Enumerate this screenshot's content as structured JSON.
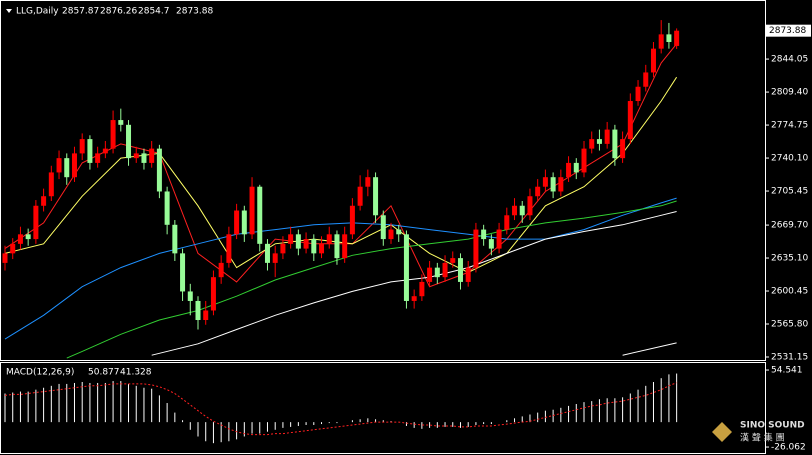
{
  "chart_data": [
    {
      "type": "candlestick",
      "title": "LLG,Daily",
      "up_color": "#ff0000",
      "down_color": "#98fb98",
      "open": [
        2630,
        2640,
        2650,
        2660,
        2655,
        2690,
        2700,
        2725,
        2740,
        2720,
        2745,
        2760,
        2735,
        2745,
        2750,
        2780,
        2775,
        2740,
        2745,
        2735,
        2750,
        2705,
        2670,
        2640,
        2600,
        2590,
        2570,
        2580,
        2615,
        2630,
        2660,
        2685,
        2660,
        2710,
        2650,
        2630,
        2640,
        2650,
        2660,
        2645,
        2655,
        2640,
        2650,
        2660,
        2635,
        2660,
        2690,
        2710,
        2720,
        2680,
        2655,
        2665,
        2660,
        2590,
        2595,
        2610,
        2625,
        2615,
        2630,
        2635,
        2610,
        2625,
        2665,
        2655,
        2645,
        2665,
        2680,
        2690,
        2680,
        2700,
        2710,
        2720,
        2705,
        2720,
        2735,
        2725,
        2750,
        2760,
        2755,
        2770,
        2740,
        2760,
        2800,
        2815,
        2830,
        2855,
        2870,
        2857.87
      ],
      "high": [
        2648,
        2656,
        2668,
        2666,
        2696,
        2708,
        2732,
        2748,
        2745,
        2752,
        2766,
        2764,
        2752,
        2758,
        2790,
        2792,
        2780,
        2752,
        2750,
        2758,
        2754,
        2710,
        2675,
        2645,
        2608,
        2595,
        2590,
        2622,
        2638,
        2668,
        2692,
        2690,
        2720,
        2712,
        2655,
        2648,
        2658,
        2668,
        2665,
        2662,
        2660,
        2658,
        2668,
        2664,
        2668,
        2698,
        2722,
        2728,
        2725,
        2685,
        2672,
        2670,
        2664,
        2602,
        2618,
        2632,
        2630,
        2638,
        2642,
        2640,
        2632,
        2672,
        2670,
        2660,
        2672,
        2688,
        2698,
        2695,
        2708,
        2718,
        2728,
        2725,
        2728,
        2742,
        2740,
        2758,
        2768,
        2770,
        2778,
        2775,
        2768,
        2808,
        2822,
        2838,
        2862,
        2885,
        2882,
        2876.26
      ],
      "low": [
        2622,
        2634,
        2644,
        2648,
        2650,
        2684,
        2695,
        2718,
        2712,
        2715,
        2738,
        2728,
        2730,
        2740,
        2745,
        2768,
        2732,
        2735,
        2728,
        2730,
        2698,
        2660,
        2632,
        2590,
        2575,
        2560,
        2565,
        2575,
        2608,
        2625,
        2655,
        2652,
        2655,
        2642,
        2622,
        2615,
        2634,
        2645,
        2638,
        2640,
        2632,
        2635,
        2645,
        2628,
        2630,
        2655,
        2685,
        2700,
        2672,
        2648,
        2650,
        2652,
        2582,
        2582,
        2590,
        2605,
        2608,
        2610,
        2625,
        2602,
        2605,
        2620,
        2648,
        2638,
        2640,
        2660,
        2675,
        2672,
        2675,
        2695,
        2705,
        2698,
        2700,
        2715,
        2718,
        2720,
        2745,
        2748,
        2750,
        2732,
        2735,
        2755,
        2795,
        2810,
        2825,
        2850,
        2855,
        2854.7
      ],
      "close": [
        2640,
        2650,
        2660,
        2655,
        2690,
        2700,
        2725,
        2740,
        2720,
        2745,
        2760,
        2735,
        2745,
        2750,
        2780,
        2775,
        2740,
        2745,
        2735,
        2750,
        2705,
        2670,
        2640,
        2600,
        2590,
        2570,
        2580,
        2615,
        2630,
        2660,
        2685,
        2660,
        2710,
        2650,
        2630,
        2640,
        2650,
        2660,
        2645,
        2655,
        2640,
        2650,
        2660,
        2635,
        2660,
        2690,
        2710,
        2720,
        2680,
        2655,
        2665,
        2660,
        2590,
        2595,
        2610,
        2625,
        2615,
        2630,
        2635,
        2610,
        2625,
        2665,
        2655,
        2645,
        2665,
        2680,
        2690,
        2680,
        2700,
        2710,
        2720,
        2705,
        2720,
        2735,
        2725,
        2750,
        2760,
        2755,
        2770,
        2740,
        2760,
        2800,
        2815,
        2830,
        2855,
        2870,
        2862,
        2873.88
      ],
      "series": [
        {
          "color": "#ff2020",
          "x": [
            0,
            5,
            10,
            15,
            20,
            25,
            30,
            35,
            40,
            45,
            50,
            55,
            60,
            65,
            70,
            75,
            80,
            85,
            87
          ],
          "values": [
            2645,
            2672,
            2735,
            2755,
            2745,
            2640,
            2610,
            2655,
            2650,
            2650,
            2690,
            2605,
            2620,
            2655,
            2705,
            2730,
            2755,
            2840,
            2860
          ]
        },
        {
          "color": "#ffff66",
          "x": [
            0,
            5,
            10,
            15,
            20,
            25,
            30,
            35,
            40,
            45,
            50,
            55,
            60,
            65,
            70,
            75,
            80,
            85,
            87
          ],
          "values": [
            2640,
            2650,
            2700,
            2740,
            2745,
            2690,
            2625,
            2650,
            2655,
            2650,
            2670,
            2640,
            2620,
            2640,
            2690,
            2710,
            2745,
            2800,
            2825
          ]
        },
        {
          "color": "#1e90ff",
          "x": [
            0,
            5,
            10,
            15,
            20,
            25,
            30,
            35,
            40,
            45,
            50,
            55,
            60,
            65,
            70,
            75,
            80,
            85,
            87
          ],
          "values": [
            2550,
            2575,
            2605,
            2625,
            2640,
            2650,
            2660,
            2665,
            2670,
            2672,
            2670,
            2665,
            2660,
            2655,
            2655,
            2665,
            2680,
            2693,
            2698
          ]
        },
        {
          "color": "#32cd32",
          "x": [
            8,
            10,
            15,
            20,
            25,
            30,
            35,
            40,
            45,
            50,
            55,
            60,
            65,
            70,
            75,
            80,
            85,
            87
          ],
          "values": [
            2530,
            2537,
            2555,
            2570,
            2580,
            2595,
            2612,
            2625,
            2638,
            2645,
            2650,
            2655,
            2665,
            2672,
            2677,
            2683,
            2690,
            2695
          ]
        },
        {
          "color": "#ffffff",
          "x": [
            19,
            20,
            25,
            30,
            35,
            40,
            45,
            50,
            55,
            60,
            65,
            70,
            75,
            80,
            85,
            87
          ],
          "values": [
            2533,
            2535,
            2545,
            2560,
            2575,
            2588,
            2600,
            2610,
            2615,
            2625,
            2640,
            2655,
            2663,
            2670,
            2680,
            2684
          ]
        },
        {
          "color": "#ffffff",
          "x": [
            80,
            87
          ],
          "values": [
            2533,
            2546
          ]
        }
      ],
      "ylim": [
        2528,
        2904
      ],
      "yticks": [
        2531.15,
        {
          "value": 2565.8,
          "label": "2565.80"
        },
        2600.45,
        {
          "value": 2635.1,
          "label": "2635.10"
        },
        {
          "value": 2669.7,
          "label": "2669.70"
        },
        2705.45,
        {
          "value": 2740.1,
          "label": "2740.10"
        },
        2774.75,
        {
          "value": 2809.4,
          "label": "2809.40"
        },
        2844.05
      ]
    },
    {
      "type": "macd",
      "title": "MACD(12,26,9)",
      "histogram_color": "#ffffff",
      "signal_color": "#ff2020",
      "histogram": [
        30,
        31,
        32,
        32,
        34,
        36,
        38,
        40,
        40,
        41,
        42,
        41,
        41,
        41,
        43,
        43,
        40,
        38,
        36,
        35,
        28,
        20,
        10,
        2,
        -8,
        -15,
        -20,
        -22,
        -21,
        -20,
        -18,
        -15,
        -12,
        -12,
        -10,
        -8,
        -6,
        -5,
        -4,
        -3,
        -3,
        -2,
        -1,
        -1,
        0,
        2,
        3,
        4,
        3,
        2,
        1,
        0,
        -4,
        -6,
        -7,
        -6,
        -6,
        -5,
        -5,
        -6,
        -5,
        -3,
        -2,
        -2,
        0,
        2,
        4,
        6,
        8,
        10,
        12,
        13,
        15,
        17,
        19,
        21,
        22,
        24,
        25,
        25,
        26,
        30,
        34,
        38,
        42,
        46,
        50,
        50.877
      ],
      "signal": [
        28,
        29,
        29,
        30,
        31,
        32,
        33,
        34,
        35,
        36,
        37,
        38,
        38,
        39,
        40,
        40,
        40,
        40,
        40,
        39,
        37,
        34,
        30,
        24,
        18,
        12,
        6,
        1,
        -3,
        -7,
        -10,
        -12,
        -13,
        -13,
        -13,
        -12,
        -12,
        -11,
        -10,
        -9,
        -8,
        -7,
        -6,
        -5,
        -4,
        -3,
        -2,
        -1,
        0,
        0,
        0,
        0,
        -1,
        -2,
        -3,
        -3,
        -4,
        -4,
        -4,
        -5,
        -5,
        -4,
        -4,
        -4,
        -3,
        -2,
        -1,
        0,
        1,
        3,
        5,
        7,
        9,
        11,
        13,
        15,
        17,
        18,
        20,
        21,
        22,
        24,
        26,
        28,
        31,
        34,
        38,
        41.328
      ],
      "ylim": [
        -32.3,
        61.9
      ],
      "yticks": [
        54.541,
        -26.062
      ]
    }
  ],
  "watermark": {
    "line1": "SINO SOUND",
    "line2": "漢 聲 集 團"
  }
}
